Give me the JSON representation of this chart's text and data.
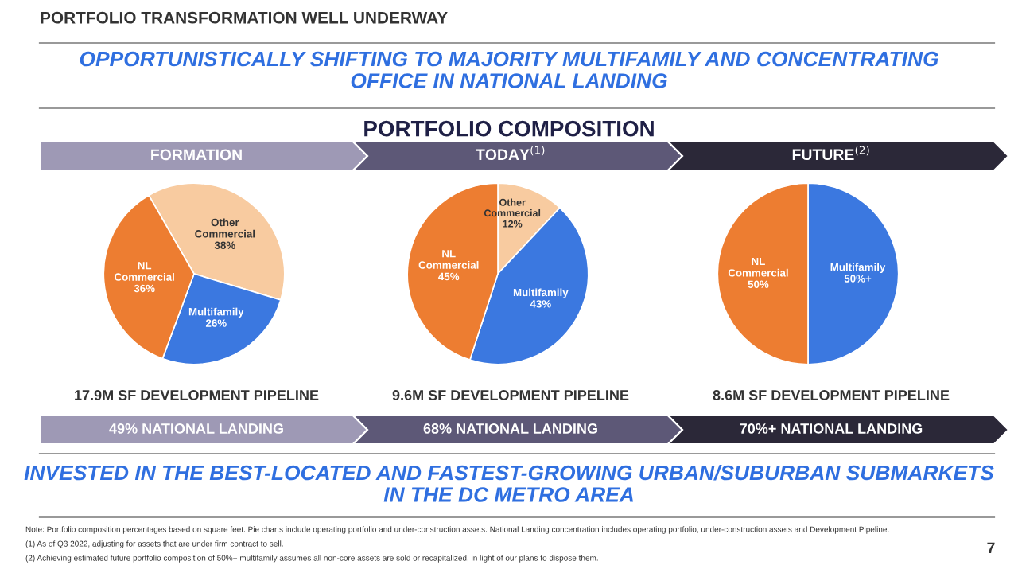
{
  "chart_data": [
    {
      "type": "other",
      "title": "PORTFOLIO TRANSFORMATION WELL UNDERWAY",
      "annotations": [
        "OPPORTUNISTICALLY SHIFTING TO MAJORITY MULTIFAMILY AND CONCENTRATING\nOFFICE IN NATIONAL LANDING",
        "PORTFOLIO COMPOSITION",
        "INVESTED IN THE BEST-LOCATED AND FASTEST-GROWING URBAN/SUBURBAN SUBMARKETS\nIN THE DC METRO AREA",
        "Note: Portfolio composition percentages based on square feet. Pie charts include operating portfolio and under-construction assets. National Landing concentration includes operating portfolio, under-construction assets and Development Pipeline.",
        "(1) As of Q3 2022, adjusting for assets that are under firm contract to sell.",
        "(2) Achieving estimated future portfolio composition of 50%+ multifamily assumes all non-core assets are sold or recapitalized, in light of our plans to dispose them.",
        "7"
      ]
    },
    {
      "type": "pie",
      "title": "FORMATION",
      "categories": [
        "Other Commercial",
        "Multifamily",
        "NL Commercial"
      ],
      "values": [
        38,
        26,
        36
      ],
      "colors": [
        "#f8cba0",
        "#3b78e0",
        "#ed7d31"
      ],
      "value_labels": [
        "38%",
        "26%",
        "36%"
      ],
      "annotations": [
        "17.9M SF DEVELOPMENT PIPELINE",
        "49% NATIONAL LANDING"
      ]
    },
    {
      "type": "pie",
      "title": "TODAY$^{(1)}$",
      "categories": [
        "Other Commercial",
        "Multifamily",
        "NL Commercial"
      ],
      "values": [
        12,
        43,
        45
      ],
      "colors": [
        "#f8cba0",
        "#3b78e0",
        "#ed7d31"
      ],
      "value_labels": [
        "12%",
        "43%",
        "45%"
      ],
      "annotations": [
        "9.6M SF DEVELOPMENT PIPELINE",
        "68% NATIONAL LANDING"
      ]
    },
    {
      "type": "pie",
      "title": "FUTURE$^{(2)}$",
      "categories": [
        "Multifamily",
        "NL Commercial"
      ],
      "values": [
        50,
        50
      ],
      "colors": [
        "#3b78e0",
        "#ed7d31"
      ],
      "value_labels": [
        "50%+",
        "50%"
      ],
      "annotations": [
        "8.6M SF DEVELOPMENT PIPELINE",
        "70%+ NATIONAL LANDING"
      ]
    }
  ]
}
